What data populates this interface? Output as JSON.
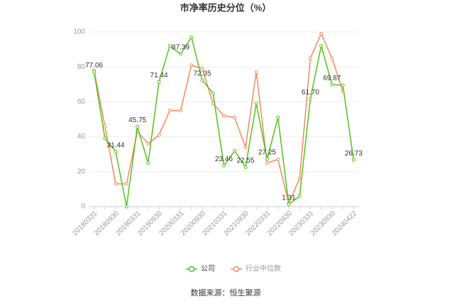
{
  "chart_data": {
    "type": "line",
    "title": "市净率历史分位（%）",
    "categories": [
      "20180331",
      null,
      "20180930",
      null,
      "20190331",
      null,
      "20190930",
      null,
      "20200331",
      null,
      "20200930",
      null,
      "20210331",
      null,
      "20210930",
      null,
      "20220331",
      null,
      "20220930",
      null,
      "20230331",
      null,
      "20230930",
      null,
      "20240422"
    ],
    "series": [
      {
        "name": "公司",
        "color": "#52c41a",
        "values": [
          77.06,
          39,
          31.44,
          0,
          45.75,
          25,
          71.44,
          92,
          87.39,
          97,
          72.35,
          65,
          23.46,
          32,
          22.55,
          59,
          27.25,
          51,
          1.31,
          6,
          61.7,
          92,
          69.87,
          69.5,
          26.73
        ],
        "value_labels": [
          "77.06",
          null,
          "31.44",
          null,
          "45.75",
          null,
          "71.44",
          null,
          "87.39",
          null,
          "72.35",
          null,
          "23.46",
          null,
          "22.55",
          null,
          "27.25",
          null,
          "1.31",
          null,
          "61.70",
          null,
          "69.87",
          null,
          "26.73"
        ]
      },
      {
        "name": "行业中位数",
        "color": "#f5895d",
        "values": [
          78,
          46,
          13,
          13,
          43,
          36,
          41,
          55,
          55,
          81,
          79,
          59,
          52,
          51,
          34,
          77,
          25,
          27,
          2,
          16,
          85,
          99,
          85,
          66,
          null
        ]
      }
    ],
    "ylim": [
      0,
      100
    ],
    "yticks": [
      0,
      20,
      40,
      60,
      80,
      100
    ],
    "grid": true,
    "source": "数据来源：恒生聚源"
  }
}
